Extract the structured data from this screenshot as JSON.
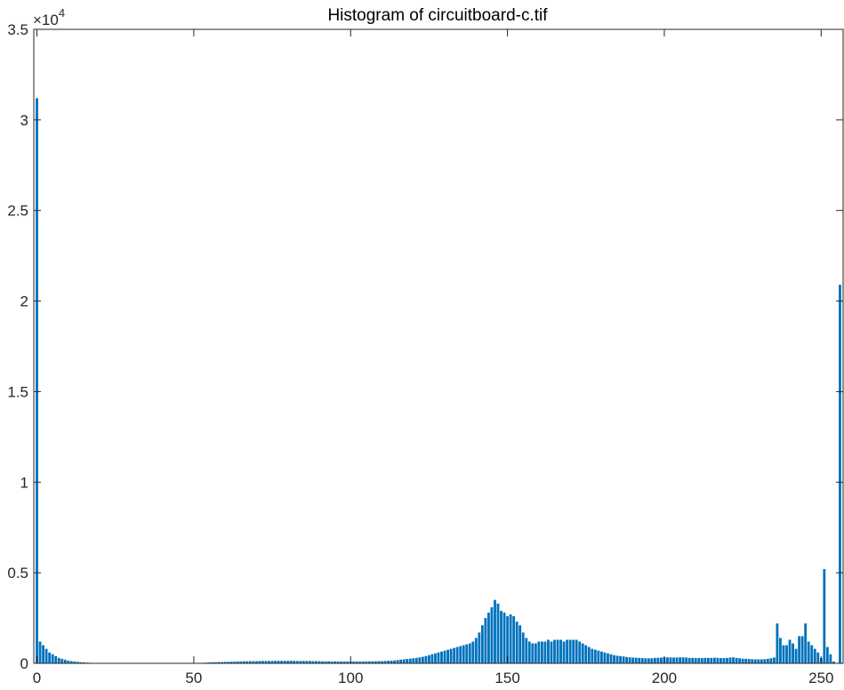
{
  "chart_data": {
    "type": "bar",
    "title": "Histogram of circuitboard-c.tif",
    "xlabel": "",
    "ylabel": "",
    "xlim": [
      -1,
      257
    ],
    "ylim": [
      0,
      35000
    ],
    "x_ticks": [
      0,
      50,
      100,
      150,
      200,
      250
    ],
    "y_ticks": [
      0,
      5000,
      10000,
      15000,
      20000,
      25000,
      30000,
      35000
    ],
    "y_tick_labels": [
      "0",
      "0.5",
      "1",
      "1.5",
      "2",
      "2.5",
      "3",
      "3.5"
    ],
    "y_exponent_prefix": "×10",
    "y_exponent": "4",
    "grid": false,
    "bar_color": "#0072BD",
    "x_start": 0,
    "x_step": 1,
    "values": [
      31200,
      1200,
      1000,
      800,
      600,
      500,
      400,
      300,
      250,
      200,
      150,
      120,
      100,
      80,
      60,
      50,
      40,
      30,
      25,
      20,
      15,
      12,
      10,
      8,
      6,
      5,
      5,
      4,
      4,
      3,
      3,
      3,
      3,
      3,
      3,
      3,
      3,
      3,
      3,
      3,
      3,
      3,
      3,
      3,
      3,
      3,
      3,
      3,
      3,
      3,
      5,
      10,
      20,
      30,
      40,
      50,
      60,
      60,
      70,
      70,
      80,
      80,
      90,
      90,
      100,
      100,
      110,
      110,
      120,
      120,
      120,
      130,
      130,
      130,
      130,
      130,
      140,
      140,
      140,
      140,
      140,
      140,
      140,
      130,
      130,
      130,
      130,
      130,
      120,
      120,
      120,
      110,
      110,
      110,
      100,
      100,
      100,
      100,
      100,
      100,
      100,
      100,
      100,
      100,
      100,
      110,
      110,
      110,
      110,
      120,
      120,
      130,
      140,
      150,
      160,
      180,
      200,
      220,
      240,
      260,
      280,
      300,
      330,
      360,
      400,
      450,
      500,
      550,
      600,
      650,
      700,
      750,
      800,
      850,
      900,
      950,
      1000,
      1050,
      1100,
      1200,
      1400,
      1700,
      2100,
      2500,
      2800,
      3100,
      3500,
      3300,
      2900,
      2800,
      2600,
      2700,
      2600,
      2300,
      2100,
      1700,
      1400,
      1200,
      1100,
      1100,
      1200,
      1200,
      1200,
      1300,
      1200,
      1300,
      1300,
      1300,
      1200,
      1300,
      1300,
      1300,
      1300,
      1200,
      1100,
      1000,
      900,
      800,
      750,
      700,
      650,
      600,
      550,
      500,
      450,
      420,
      400,
      380,
      350,
      330,
      320,
      310,
      300,
      290,
      280,
      280,
      280,
      300,
      310,
      320,
      330,
      330,
      330,
      320,
      320,
      330,
      330,
      320,
      300,
      300,
      290,
      290,
      290,
      300,
      300,
      300,
      310,
      300,
      290,
      290,
      300,
      320,
      330,
      300,
      280,
      260,
      250,
      240,
      230,
      220,
      220,
      220,
      230,
      250,
      280,
      320,
      2200,
      1400,
      1000,
      1000,
      1300,
      1100,
      800,
      1500,
      1500,
      2200,
      1200,
      1000,
      800,
      600,
      300,
      5200,
      900,
      500,
      100,
      10,
      20900
    ]
  }
}
